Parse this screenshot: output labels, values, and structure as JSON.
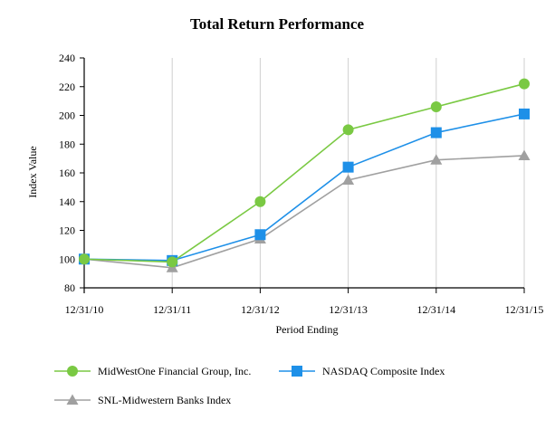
{
  "chart_data": {
    "type": "line",
    "title": "Total Return Performance",
    "xlabel": "Period Ending",
    "ylabel": "Index Value",
    "categories": [
      "12/31/10",
      "12/31/11",
      "12/31/12",
      "12/31/13",
      "12/31/14",
      "12/31/15"
    ],
    "ylim": [
      80,
      240
    ],
    "yticks": [
      80,
      100,
      120,
      140,
      160,
      180,
      200,
      220,
      240
    ],
    "grid": "vertical",
    "legend_placement": "bottom",
    "series": [
      {
        "name": "MidWestOne Financial Group, Inc.",
        "color": "#7ac943",
        "marker": "circle",
        "values": [
          100,
          98,
          140,
          190,
          206,
          222
        ]
      },
      {
        "name": "NASDAQ Composite Index",
        "color": "#1e90e8",
        "marker": "square",
        "values": [
          100,
          99,
          117,
          164,
          188,
          201
        ]
      },
      {
        "name": "SNL-Midwestern Banks Index",
        "color": "#a0a0a0",
        "marker": "triangle",
        "values": [
          100,
          94,
          114,
          155,
          169,
          172
        ]
      }
    ]
  }
}
